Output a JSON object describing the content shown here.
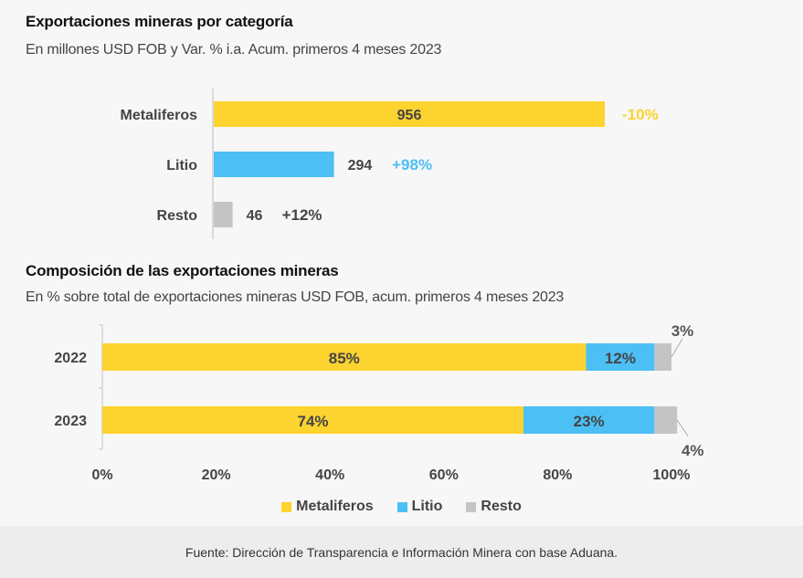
{
  "colors": {
    "metaliferos": "#fcd32f",
    "litio": "#4cbff5",
    "resto": "#c4c4c4",
    "text_dark": "#444444"
  },
  "chart_data": [
    {
      "type": "bar",
      "orientation": "horizontal",
      "title": "Exportaciones mineras por categoría",
      "subtitle": "En millones USD FOB y Var. % i.a. Acum. primeros 4 meses 2023",
      "categories": [
        "Metaliferos",
        "Litio",
        "Resto"
      ],
      "values": [
        956,
        294,
        46
      ],
      "value_labels": [
        "956",
        "294",
        "46"
      ],
      "variation_labels": [
        "-10%",
        "+98%",
        "+12%"
      ],
      "variation_colors": [
        "#fcd32f",
        "#4cbff5",
        "#444444"
      ],
      "bar_colors": [
        "#fcd32f",
        "#4cbff5",
        "#c4c4c4"
      ],
      "xlim": [
        0,
        956
      ],
      "xlabel": "",
      "ylabel": "",
      "grid": false
    },
    {
      "type": "bar",
      "orientation": "horizontal",
      "stacked": true,
      "title": "Composición de las exportaciones mineras",
      "subtitle": "En % sobre total de exportaciones mineras USD FOB, acum. primeros 4 meses 2023",
      "categories": [
        "2022",
        "2023"
      ],
      "series": [
        {
          "name": "Metaliferos",
          "values": [
            85,
            74
          ],
          "labels": [
            "85%",
            "74%"
          ],
          "color": "#fcd32f"
        },
        {
          "name": "Litio",
          "values": [
            12,
            23
          ],
          "labels": [
            "12%",
            "23%"
          ],
          "color": "#4cbff5"
        },
        {
          "name": "Resto",
          "values": [
            3,
            4
          ],
          "labels": [
            "3%",
            "4%"
          ],
          "color": "#c4c4c4"
        }
      ],
      "xlim": [
        0,
        100
      ],
      "xticks": [
        "0%",
        "20%",
        "40%",
        "60%",
        "80%",
        "100%"
      ],
      "xtick_values": [
        0,
        20,
        40,
        60,
        80,
        100
      ],
      "legend": {
        "position": "bottom",
        "entries": [
          "Metaliferos",
          "Litio",
          "Resto"
        ]
      },
      "grid": false
    }
  ],
  "footer": {
    "source": "Fuente: Dirección de Transparencia e Información Minera con base Aduana."
  }
}
